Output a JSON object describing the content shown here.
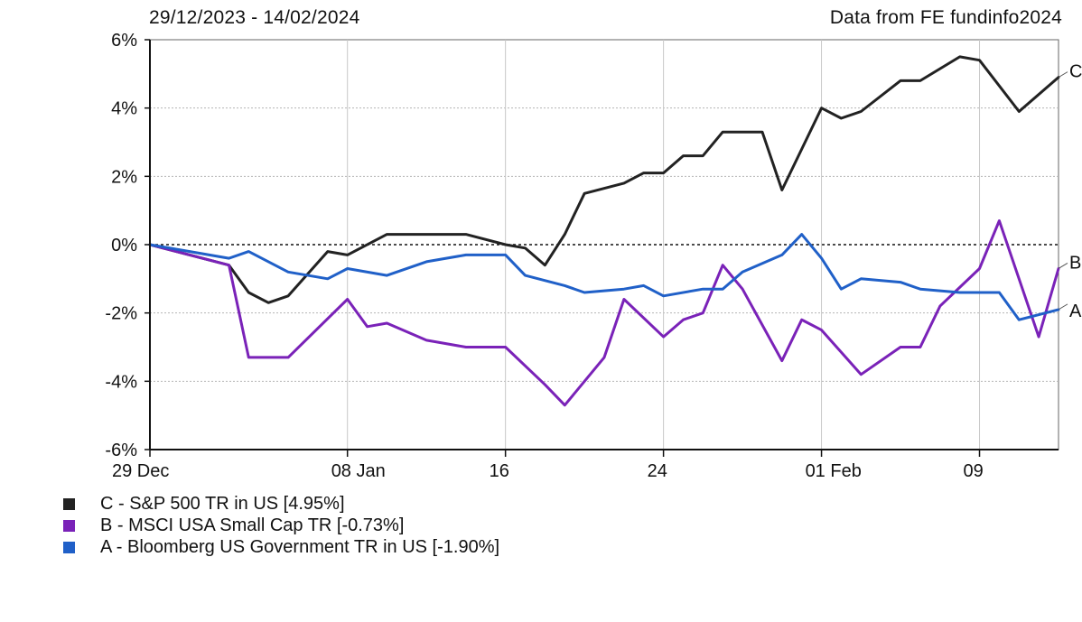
{
  "header": {
    "date_range": "29/12/2023 - 14/02/2024",
    "source": "Data from FE fundinfo2024"
  },
  "chart_data": {
    "type": "line",
    "x_tick_labels": [
      "29 Dec",
      "08 Jan",
      "16",
      "24",
      "01 Feb",
      "09"
    ],
    "x_tick_dates": [
      "2023-12-29",
      "2024-01-08",
      "2024-01-16",
      "2024-01-24",
      "2024-02-01",
      "2024-02-09"
    ],
    "x_range": [
      "2023-12-29",
      "2024-02-13"
    ],
    "y_tick_labels": [
      "6%",
      "4%",
      "2%",
      "0%",
      "-2%",
      "-4%",
      "-6%"
    ],
    "y_ticks": [
      6,
      4,
      2,
      0,
      -2,
      -4,
      -6
    ],
    "ylim": [
      -6,
      6
    ],
    "grid": true,
    "zero_line": "dashed",
    "legend_position": "bottom-left",
    "series": [
      {
        "name": "C - S&P 500 TR in US [4.95%]",
        "end_label": "C",
        "color": "#222222",
        "points": [
          [
            "2023-12-29",
            0.0
          ],
          [
            "2024-01-02",
            -0.6
          ],
          [
            "2024-01-03",
            -1.4
          ],
          [
            "2024-01-04",
            -1.7
          ],
          [
            "2024-01-05",
            -1.5
          ],
          [
            "2024-01-07",
            -0.2
          ],
          [
            "2024-01-08",
            -0.3
          ],
          [
            "2024-01-10",
            0.3
          ],
          [
            "2024-01-12",
            0.3
          ],
          [
            "2024-01-14",
            0.3
          ],
          [
            "2024-01-16",
            0.0
          ],
          [
            "2024-01-17",
            -0.1
          ],
          [
            "2024-01-18",
            -0.6
          ],
          [
            "2024-01-19",
            0.3
          ],
          [
            "2024-01-20",
            1.5
          ],
          [
            "2024-01-22",
            1.8
          ],
          [
            "2024-01-23",
            2.1
          ],
          [
            "2024-01-24",
            2.1
          ],
          [
            "2024-01-25",
            2.6
          ],
          [
            "2024-01-26",
            2.6
          ],
          [
            "2024-01-27",
            3.3
          ],
          [
            "2024-01-29",
            3.3
          ],
          [
            "2024-01-30",
            1.6
          ],
          [
            "2024-01-31",
            2.8
          ],
          [
            "2024-02-01",
            4.0
          ],
          [
            "2024-02-02",
            3.7
          ],
          [
            "2024-02-03",
            3.9
          ],
          [
            "2024-02-05",
            4.8
          ],
          [
            "2024-02-06",
            4.8
          ],
          [
            "2024-02-08",
            5.5
          ],
          [
            "2024-02-09",
            5.4
          ],
          [
            "2024-02-11",
            3.9
          ],
          [
            "2024-02-13",
            4.9
          ]
        ]
      },
      {
        "name": "B - MSCI USA Small Cap TR [-0.73%]",
        "end_label": "B",
        "color": "#7a22b8",
        "points": [
          [
            "2023-12-29",
            0.0
          ],
          [
            "2024-01-02",
            -0.6
          ],
          [
            "2024-01-03",
            -3.3
          ],
          [
            "2024-01-05",
            -3.3
          ],
          [
            "2024-01-08",
            -1.6
          ],
          [
            "2024-01-09",
            -2.4
          ],
          [
            "2024-01-10",
            -2.3
          ],
          [
            "2024-01-12",
            -2.8
          ],
          [
            "2024-01-14",
            -3.0
          ],
          [
            "2024-01-16",
            -3.0
          ],
          [
            "2024-01-18",
            -4.1
          ],
          [
            "2024-01-19",
            -4.7
          ],
          [
            "2024-01-21",
            -3.3
          ],
          [
            "2024-01-22",
            -1.6
          ],
          [
            "2024-01-24",
            -2.7
          ],
          [
            "2024-01-25",
            -2.2
          ],
          [
            "2024-01-26",
            -2.0
          ],
          [
            "2024-01-27",
            -0.6
          ],
          [
            "2024-01-28",
            -1.3
          ],
          [
            "2024-01-30",
            -3.4
          ],
          [
            "2024-01-31",
            -2.2
          ],
          [
            "2024-02-01",
            -2.5
          ],
          [
            "2024-02-03",
            -3.8
          ],
          [
            "2024-02-05",
            -3.0
          ],
          [
            "2024-02-06",
            -3.0
          ],
          [
            "2024-02-07",
            -1.8
          ],
          [
            "2024-02-09",
            -0.7
          ],
          [
            "2024-02-10",
            0.7
          ],
          [
            "2024-02-12",
            -2.7
          ],
          [
            "2024-02-13",
            -0.7
          ]
        ]
      },
      {
        "name": "A - Bloomberg US Government TR in US [-1.90%]",
        "end_label": "A",
        "color": "#2060c8",
        "points": [
          [
            "2023-12-29",
            0.0
          ],
          [
            "2024-01-02",
            -0.4
          ],
          [
            "2024-01-03",
            -0.2
          ],
          [
            "2024-01-05",
            -0.8
          ],
          [
            "2024-01-07",
            -1.0
          ],
          [
            "2024-01-08",
            -0.7
          ],
          [
            "2024-01-10",
            -0.9
          ],
          [
            "2024-01-12",
            -0.5
          ],
          [
            "2024-01-14",
            -0.3
          ],
          [
            "2024-01-16",
            -0.3
          ],
          [
            "2024-01-17",
            -0.9
          ],
          [
            "2024-01-19",
            -1.2
          ],
          [
            "2024-01-20",
            -1.4
          ],
          [
            "2024-01-22",
            -1.3
          ],
          [
            "2024-01-23",
            -1.2
          ],
          [
            "2024-01-24",
            -1.5
          ],
          [
            "2024-01-26",
            -1.3
          ],
          [
            "2024-01-27",
            -1.3
          ],
          [
            "2024-01-28",
            -0.8
          ],
          [
            "2024-01-30",
            -0.3
          ],
          [
            "2024-01-31",
            0.3
          ],
          [
            "2024-02-01",
            -0.4
          ],
          [
            "2024-02-02",
            -1.3
          ],
          [
            "2024-02-03",
            -1.0
          ],
          [
            "2024-02-05",
            -1.1
          ],
          [
            "2024-02-06",
            -1.3
          ],
          [
            "2024-02-08",
            -1.4
          ],
          [
            "2024-02-10",
            -1.4
          ],
          [
            "2024-02-11",
            -2.2
          ],
          [
            "2024-02-13",
            -1.9
          ]
        ]
      }
    ]
  }
}
